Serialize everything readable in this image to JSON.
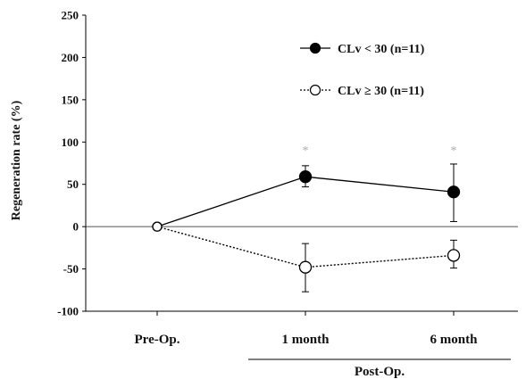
{
  "chart_data": {
    "type": "line",
    "title": "",
    "ylabel": "Regeneration rate (%)",
    "xlabel": "",
    "ylim": [
      -100,
      250
    ],
    "yticks": [
      250,
      200,
      150,
      100,
      50,
      0,
      -50,
      -100
    ],
    "categories": [
      "Pre-Op.",
      "1 month",
      "6 month"
    ],
    "group_label": "Post-Op.",
    "reference_line_y": 0,
    "significance_marker": "*",
    "significant_categories": [
      "1 month",
      "6 month"
    ],
    "series": [
      {
        "name": "CLv < 30 (n=11)",
        "values": [
          0,
          59,
          41
        ],
        "error_upper": [
          null,
          72,
          74
        ],
        "error_lower": [
          null,
          47,
          6
        ],
        "marker": "filled-circle",
        "line": "solid",
        "color": "#000000"
      },
      {
        "name": "CLv ≥ 30 (n=11)",
        "values": [
          0,
          -48,
          -34
        ],
        "error_upper": [
          null,
          -20,
          -16
        ],
        "error_lower": [
          null,
          -77,
          -49
        ],
        "marker": "open-circle",
        "line": "dotted",
        "color": "#000000"
      }
    ],
    "legend_position": "top-right"
  }
}
